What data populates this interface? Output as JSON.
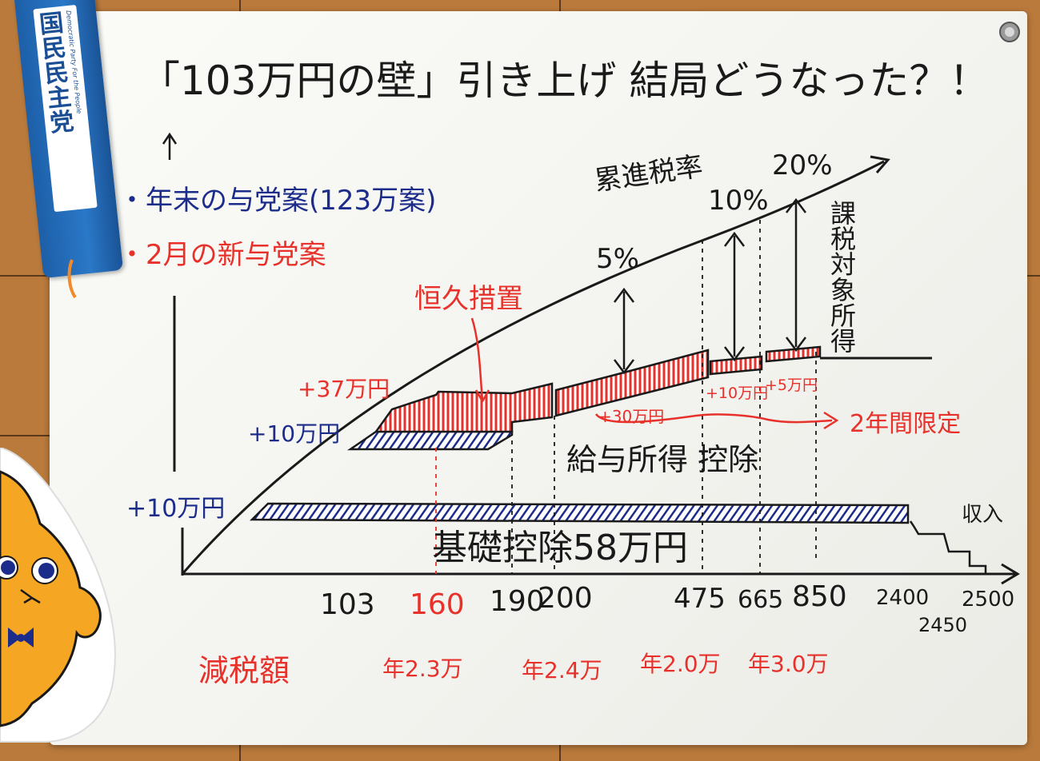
{
  "title": "「103万円の壁」引き上げ 結局どうなった？！",
  "legend": {
    "year_end": "・年末の与党案(123万案)",
    "feb": "・2月の新与党案"
  },
  "labels": {
    "progressive_rate": "累進税率",
    "rate_5": "5%",
    "rate_10": "10%",
    "rate_20": "20%",
    "taxable_income": "課税対象所得",
    "permanent_measure": "恒久措置",
    "plus37": "+37万円",
    "plus10_upper": "+10万円",
    "plus10_lower": "+10万円",
    "plus30": "+30万円",
    "plus10_small": "+10万円",
    "plus5": "+5万円",
    "two_year_limit": "2年間限定",
    "salary_deduction": "給与所得 控除",
    "basic_deduction": "基礎控除58万円",
    "income_axis": "収入"
  },
  "ticks": {
    "t103": "103",
    "t160": "160",
    "t190": "190",
    "t200": "200",
    "t475": "475",
    "t665": "665",
    "t850": "850",
    "t2400": "2400",
    "t2450": "2450",
    "t2500": "2500"
  },
  "tax_cut": {
    "label": "減税額",
    "v1": "年2.3万",
    "v2": "年2.4万",
    "v3": "年2.0万",
    "v4": "年3.0万"
  },
  "banner": {
    "name": "国民民主党",
    "sub": "Democratic Party For the People"
  },
  "colors": {
    "ink_black": "#1a1a1a",
    "ink_blue": "#1c2c8a",
    "ink_red": "#e8312a",
    "party_blue": "#1d5fa8"
  }
}
